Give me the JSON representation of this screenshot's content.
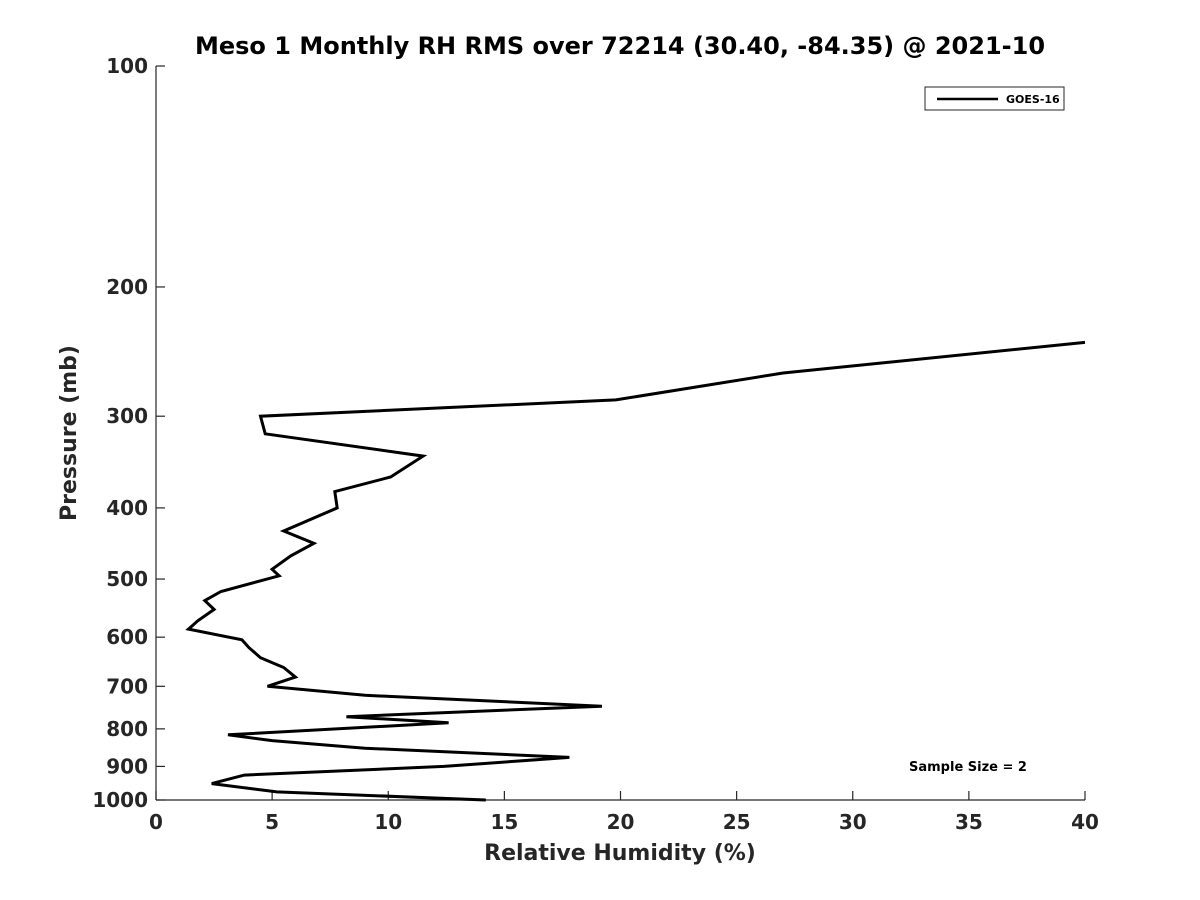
{
  "chart_data": {
    "type": "line",
    "title": "Meso 1 Monthly RH RMS over 72214 (30.40, -84.35) @ 2021-10",
    "xlabel": "Relative Humidity (%)",
    "ylabel": "Pressure (mb)",
    "xlim": [
      0,
      40
    ],
    "ylim": [
      100,
      1000
    ],
    "y_scale": "log",
    "y_reversed": true,
    "x_ticks": [
      0,
      5,
      10,
      15,
      20,
      25,
      30,
      35,
      40
    ],
    "y_ticks": [
      100,
      200,
      300,
      400,
      500,
      600,
      700,
      800,
      900,
      1000
    ],
    "grid": false,
    "legend": {
      "placement": "top-right",
      "entries": [
        "GOES-16"
      ]
    },
    "annotation": "Sample Size = 2",
    "series": [
      {
        "name": "GOES-16",
        "color": "#000000",
        "points": [
          {
            "x": 14.2,
            "y": 1000
          },
          {
            "x": 5.2,
            "y": 975
          },
          {
            "x": 2.4,
            "y": 950
          },
          {
            "x": 3.8,
            "y": 925
          },
          {
            "x": 12.4,
            "y": 900
          },
          {
            "x": 17.8,
            "y": 875
          },
          {
            "x": 9.0,
            "y": 850
          },
          {
            "x": 5.0,
            "y": 830
          },
          {
            "x": 3.1,
            "y": 815
          },
          {
            "x": 12.6,
            "y": 785
          },
          {
            "x": 8.2,
            "y": 770
          },
          {
            "x": 19.2,
            "y": 745
          },
          {
            "x": 9.0,
            "y": 720
          },
          {
            "x": 4.8,
            "y": 700
          },
          {
            "x": 6.0,
            "y": 680
          },
          {
            "x": 5.5,
            "y": 660
          },
          {
            "x": 4.5,
            "y": 640
          },
          {
            "x": 4.0,
            "y": 620
          },
          {
            "x": 3.7,
            "y": 605
          },
          {
            "x": 1.4,
            "y": 585
          },
          {
            "x": 1.8,
            "y": 570
          },
          {
            "x": 2.5,
            "y": 550
          },
          {
            "x": 2.1,
            "y": 535
          },
          {
            "x": 2.8,
            "y": 520
          },
          {
            "x": 5.3,
            "y": 495
          },
          {
            "x": 5.0,
            "y": 485
          },
          {
            "x": 5.8,
            "y": 465
          },
          {
            "x": 6.8,
            "y": 447
          },
          {
            "x": 5.5,
            "y": 430
          },
          {
            "x": 7.8,
            "y": 400
          },
          {
            "x": 7.7,
            "y": 380
          },
          {
            "x": 10.1,
            "y": 363
          },
          {
            "x": 11.5,
            "y": 340
          },
          {
            "x": 4.7,
            "y": 317
          },
          {
            "x": 4.5,
            "y": 300
          },
          {
            "x": 19.8,
            "y": 285
          },
          {
            "x": 27.0,
            "y": 262
          },
          {
            "x": 40.0,
            "y": 238
          }
        ]
      }
    ]
  }
}
